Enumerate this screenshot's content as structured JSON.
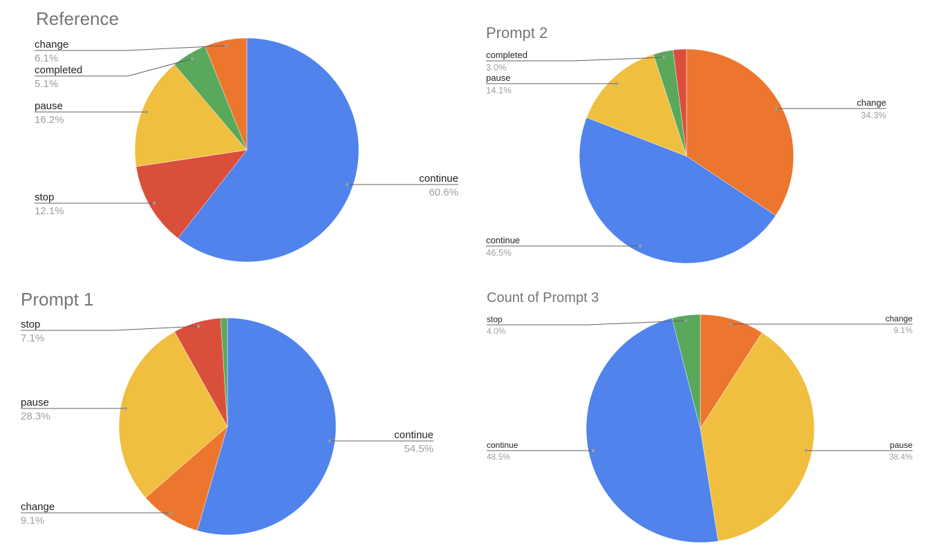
{
  "chart_data": [
    {
      "type": "pie",
      "title": "Reference",
      "legend": "labels-on-leader-lines",
      "slices": [
        {
          "label": "continue",
          "value": 60.6,
          "percent_text": "60.6%",
          "color": "#5083ec"
        },
        {
          "label": "stop",
          "value": 12.1,
          "percent_text": "12.1%",
          "color": "#da4e3c"
        },
        {
          "label": "pause",
          "value": 16.2,
          "percent_text": "16.2%",
          "color": "#f0bf40"
        },
        {
          "label": "completed",
          "value": 5.1,
          "percent_text": "5.1%",
          "color": "#59a85c"
        },
        {
          "label": "change",
          "value": 6.1,
          "percent_text": "6.1%",
          "color": "#ec762e"
        }
      ]
    },
    {
      "type": "pie",
      "title": "Prompt 2",
      "legend": "labels-on-leader-lines",
      "slices": [
        {
          "label": "change",
          "value": 34.3,
          "percent_text": "34.3%",
          "color": "#ec762e"
        },
        {
          "label": "continue",
          "value": 46.5,
          "percent_text": "46.5%",
          "color": "#5083ec"
        },
        {
          "label": "pause",
          "value": 14.1,
          "percent_text": "14.1%",
          "color": "#f0bf40"
        },
        {
          "label": "completed",
          "value": 3.0,
          "percent_text": "3.0%",
          "color": "#59a85c"
        },
        {
          "label": "",
          "value": 2.0,
          "percent_text": "",
          "color": "#da4e3c"
        }
      ]
    },
    {
      "type": "pie",
      "title": "Prompt 1",
      "legend": "labels-on-leader-lines",
      "slices": [
        {
          "label": "continue",
          "value": 54.5,
          "percent_text": "54.5%",
          "color": "#5083ec"
        },
        {
          "label": "change",
          "value": 9.1,
          "percent_text": "9.1%",
          "color": "#ec762e"
        },
        {
          "label": "pause",
          "value": 28.3,
          "percent_text": "28.3%",
          "color": "#f0bf40"
        },
        {
          "label": "stop",
          "value": 7.1,
          "percent_text": "7.1%",
          "color": "#da4e3c"
        },
        {
          "label": "",
          "value": 1.0,
          "percent_text": "",
          "color": "#59a85c"
        }
      ]
    },
    {
      "type": "pie",
      "title": "Count of Prompt 3",
      "legend": "labels-on-leader-lines",
      "slices": [
        {
          "label": "change",
          "value": 9.1,
          "percent_text": "9.1%",
          "color": "#ec762e"
        },
        {
          "label": "pause",
          "value": 38.4,
          "percent_text": "38.4%",
          "color": "#f0bf40"
        },
        {
          "label": "continue",
          "value": 48.5,
          "percent_text": "48.5%",
          "color": "#5083ec"
        },
        {
          "label": "stop",
          "value": 4.0,
          "percent_text": "4.0%",
          "color": "#59a85c"
        }
      ]
    }
  ]
}
